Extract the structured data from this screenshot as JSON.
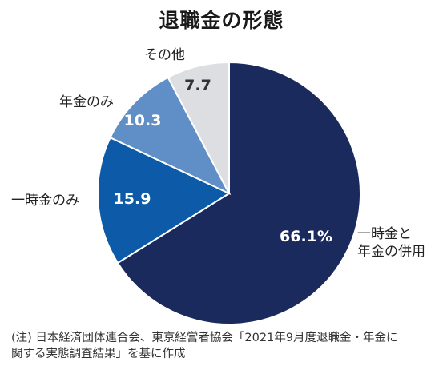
{
  "chart_data": {
    "type": "pie",
    "title": "退職金の形態",
    "slices": [
      {
        "label_lines": [
          "一時金と",
          "年金の併用"
        ],
        "value": 66.1,
        "value_label": "66.1%",
        "color": "#1b2a5c",
        "value_color": "#ffffff"
      },
      {
        "label_lines": [
          "一時金のみ"
        ],
        "value": 15.9,
        "value_label": "15.9",
        "color": "#0d5ba8",
        "value_color": "#ffffff"
      },
      {
        "label_lines": [
          "年金のみ"
        ],
        "value": 10.3,
        "value_label": "10.3",
        "color": "#5f8fc6",
        "value_color": "#ffffff"
      },
      {
        "label_lines": [
          "その他"
        ],
        "value": 7.7,
        "value_label": "7.7",
        "color": "#dcdee2",
        "value_color": "#333333"
      }
    ],
    "legend": "none"
  },
  "note": {
    "line1": "(注) 日本経済団体連合会、東京経営者協会「2021年9月度退職金・年金に",
    "line2": "関する実態調査結果」を基に作成"
  }
}
